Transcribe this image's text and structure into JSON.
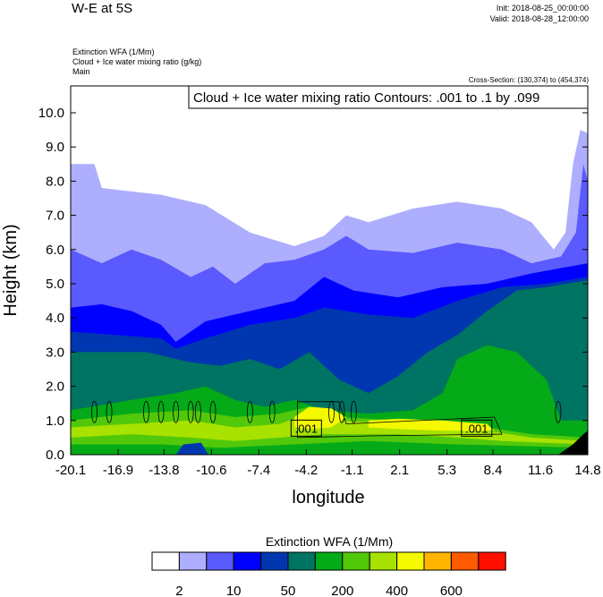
{
  "header": {
    "title": "W-E at 5S",
    "init": "Init: 2018-08-25_00:00:00",
    "valid": "Valid: 2018-08-28_12:00:00",
    "field1": "Extinction WFA   (1/Mm)",
    "field2": "Cloud + Ice water mixing ratio    (g/kg)",
    "field3": "Main",
    "cross_section": "Cross-Section: (130,374) to (454,374)",
    "contour_info": "Cloud + Ice water mixing ratio Contours: .001 to .1 by .099"
  },
  "chart_data": {
    "type": "heatmap",
    "xlabel": "longitude",
    "ylabel": "Height (km)",
    "xlim": [
      -20.1,
      14.8
    ],
    "ylim": [
      0,
      10.8
    ],
    "xticks": [
      "-20.1",
      "-16.9",
      "-13.8",
      "-10.6",
      "-7.4",
      "-4.2",
      "-1.1",
      "2.1",
      "5.3",
      "8.4",
      "11.6",
      "14.8"
    ],
    "yticks": [
      "0.0",
      "1.0",
      "2.0",
      "3.0",
      "4.0",
      "5.0",
      "6.0",
      "7.0",
      "8.0",
      "9.0",
      "10.0"
    ],
    "colorbar": {
      "title": "Extinction WFA  (1/Mm)",
      "colors": [
        "#ffffff",
        "#aeaefe",
        "#5a5aff",
        "#0000ff",
        "#0037b0",
        "#007462",
        "#05aa18",
        "#52c80a",
        "#a8e200",
        "#f4f800",
        "#ffb400",
        "#ff5a00",
        "#ff0f00"
      ],
      "labels": [
        {
          "text": "2",
          "after": 1
        },
        {
          "text": "10",
          "after": 3
        },
        {
          "text": "50",
          "after": 5
        },
        {
          "text": "200",
          "after": 7
        },
        {
          "text": "400",
          "after": 9
        },
        {
          "text": "600",
          "after": 11
        }
      ]
    },
    "filled_levels": [
      {
        "color": "#aeaefe",
        "top": [
          [
            -20.1,
            8.5
          ],
          [
            -18.5,
            8.5
          ],
          [
            -18,
            7.8
          ],
          [
            -14,
            7.6
          ],
          [
            -11,
            7.3
          ],
          [
            -8,
            6.5
          ],
          [
            -5,
            6.1
          ],
          [
            -3,
            6.4
          ],
          [
            -1.5,
            7.0
          ],
          [
            0,
            6.8
          ],
          [
            3,
            7.2
          ],
          [
            6,
            7.4
          ],
          [
            9,
            7.2
          ],
          [
            11,
            6.8
          ],
          [
            12.5,
            6.0
          ],
          [
            13.3,
            6.5
          ],
          [
            13.8,
            8.5
          ],
          [
            14.3,
            9.5
          ],
          [
            14.8,
            9.4
          ]
        ]
      },
      {
        "color": "#5a5aff",
        "top": [
          [
            -20.1,
            6.0
          ],
          [
            -18,
            5.6
          ],
          [
            -16,
            6.0
          ],
          [
            -14,
            5.7
          ],
          [
            -12,
            5.2
          ],
          [
            -10.5,
            5.5
          ],
          [
            -9,
            5.0
          ],
          [
            -7,
            5.6
          ],
          [
            -5,
            5.7
          ],
          [
            -3,
            6.0
          ],
          [
            -1.5,
            6.4
          ],
          [
            0,
            6.0
          ],
          [
            3,
            5.9
          ],
          [
            6,
            6.2
          ],
          [
            9,
            6.0
          ],
          [
            11,
            5.6
          ],
          [
            13,
            5.8
          ],
          [
            14,
            6.5
          ],
          [
            14.5,
            8.5
          ],
          [
            14.8,
            8.0
          ]
        ]
      },
      {
        "color": "#0000ff",
        "top": [
          [
            -20.1,
            4.3
          ],
          [
            -18,
            4.4
          ],
          [
            -16,
            4.2
          ],
          [
            -14,
            3.8
          ],
          [
            -13,
            3.3
          ],
          [
            -11,
            3.9
          ],
          [
            -8,
            4.2
          ],
          [
            -5,
            4.5
          ],
          [
            -3,
            5.2
          ],
          [
            -1,
            4.8
          ],
          [
            2,
            4.6
          ],
          [
            5,
            4.9
          ],
          [
            8,
            5.0
          ],
          [
            11,
            5.3
          ],
          [
            14.8,
            5.6
          ]
        ]
      },
      {
        "color": "#0037b0",
        "top": [
          [
            -20.1,
            3.6
          ],
          [
            -17,
            3.5
          ],
          [
            -14,
            3.4
          ],
          [
            -13,
            3.1
          ],
          [
            -11,
            3.4
          ],
          [
            -8,
            3.8
          ],
          [
            -5,
            4.0
          ],
          [
            -3,
            4.3
          ],
          [
            0,
            4.1
          ],
          [
            3,
            4.0
          ],
          [
            6,
            4.5
          ],
          [
            9,
            4.9
          ],
          [
            12,
            5.0
          ],
          [
            14.8,
            5.2
          ]
        ]
      },
      {
        "color": "#007462",
        "top": [
          [
            -20.1,
            3.0
          ],
          [
            -15,
            3.0
          ],
          [
            -12,
            2.7
          ],
          [
            -10,
            2.6
          ],
          [
            -8,
            2.8
          ],
          [
            -6,
            2.5
          ],
          [
            -4,
            3.0
          ],
          [
            -2,
            2.2
          ],
          [
            0,
            1.8
          ],
          [
            2,
            2.3
          ],
          [
            4,
            3.0
          ],
          [
            6,
            3.5
          ],
          [
            8,
            4.2
          ],
          [
            10,
            4.8
          ],
          [
            12,
            4.9
          ],
          [
            14.8,
            5.1
          ]
        ]
      },
      {
        "color": "#05aa18",
        "top": [
          [
            -20.1,
            1.3
          ],
          [
            -16,
            1.6
          ],
          [
            -13,
            1.8
          ],
          [
            -11,
            2.0
          ],
          [
            -9,
            1.6
          ],
          [
            -7,
            1.4
          ],
          [
            -5,
            1.6
          ],
          [
            -3,
            1.3
          ],
          [
            0,
            1.2
          ],
          [
            3,
            1.3
          ],
          [
            5,
            1.8
          ],
          [
            6,
            2.8
          ],
          [
            8,
            3.2
          ],
          [
            10,
            3.0
          ],
          [
            12,
            2.2
          ],
          [
            13,
            1.0
          ],
          [
            14.8,
            1.0
          ]
        ]
      },
      {
        "color": "#52c80a",
        "top": [
          [
            -20.1,
            1.0
          ],
          [
            -16,
            1.2
          ],
          [
            -12,
            1.3
          ],
          [
            -9,
            1.1
          ],
          [
            -6,
            1.2
          ],
          [
            -4,
            1.4
          ],
          [
            -2,
            1.1
          ],
          [
            2,
            1.0
          ],
          [
            6,
            0.9
          ],
          [
            8,
            0.8
          ],
          [
            11,
            0.6
          ],
          [
            14.8,
            0.5
          ]
        ]
      },
      {
        "color": "#a8e200",
        "top": [
          [
            -20.1,
            0.8
          ],
          [
            -16,
            0.9
          ],
          [
            -12,
            1.0
          ],
          [
            -9,
            0.8
          ],
          [
            -6,
            0.9
          ],
          [
            -4,
            1.2
          ],
          [
            -2,
            1.0
          ],
          [
            2,
            0.9
          ],
          [
            6,
            0.8
          ],
          [
            8,
            0.7
          ],
          [
            11,
            0.5
          ],
          [
            14.8,
            0.4
          ]
        ]
      },
      {
        "color": "#52c80a",
        "top": [
          [
            -20.1,
            0.5
          ],
          [
            -16,
            0.6
          ],
          [
            -12,
            0.5
          ],
          [
            -9,
            0.4
          ],
          [
            -6,
            0.5
          ],
          [
            -3,
            0.6
          ],
          [
            2,
            0.6
          ],
          [
            6,
            0.5
          ],
          [
            9,
            0.4
          ],
          [
            14.8,
            0.3
          ]
        ]
      },
      {
        "color": "#05aa18",
        "top": [
          [
            -20.1,
            0.3
          ],
          [
            -14,
            0.3
          ],
          [
            -10,
            0.2
          ],
          [
            -5,
            0.3
          ],
          [
            0,
            0.4
          ],
          [
            6,
            0.3
          ],
          [
            14.8,
            0.2
          ]
        ]
      },
      {
        "color": "#f4f800",
        "top": [
          [
            -5,
            1.1
          ],
          [
            -4,
            1.4
          ],
          [
            -2.5,
            1.35
          ],
          [
            -1.5,
            1.1
          ],
          [
            -2.5,
            0.8
          ],
          [
            -4,
            0.75
          ],
          [
            -5,
            0.8
          ]
        ]
      },
      {
        "color": "#f4f800",
        "top": [
          [
            0,
            1.0
          ],
          [
            2,
            1.05
          ],
          [
            5,
            1.0
          ],
          [
            8,
            0.9
          ],
          [
            8.5,
            0.7
          ],
          [
            5,
            0.7
          ],
          [
            2,
            0.75
          ],
          [
            0,
            0.8
          ]
        ]
      },
      {
        "color": "#0037b0",
        "top": [
          [
            -13,
            0
          ],
          [
            -12.5,
            0.3
          ],
          [
            -11.3,
            0.35
          ],
          [
            -10.8,
            0
          ]
        ]
      },
      {
        "color": "#000000",
        "top": [
          [
            12.8,
            0
          ],
          [
            13.8,
            0.3
          ],
          [
            14.5,
            0.6
          ],
          [
            14.8,
            0.7
          ],
          [
            14.8,
            0
          ]
        ]
      }
    ],
    "contour_labels": [
      {
        "text": ".001",
        "x": -4.2,
        "y": 0.75
      },
      {
        "text": ".001",
        "x": 7.3,
        "y": 0.75
      }
    ]
  }
}
